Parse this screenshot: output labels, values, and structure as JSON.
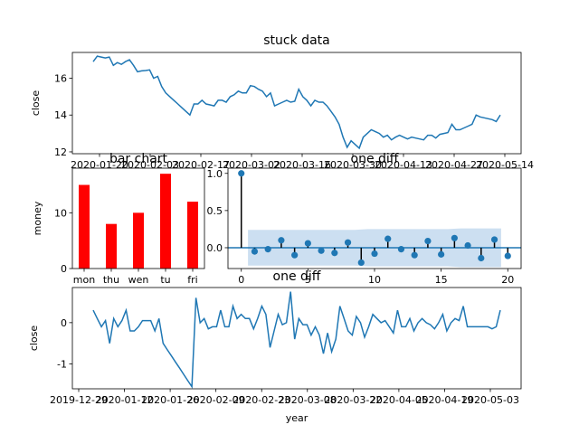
{
  "chart_data": [
    {
      "type": "line",
      "title": "stuck data",
      "xlabel": "",
      "ylabel": "close",
      "x_tick_labels": [
        "2020-01-20",
        "2020-02-03",
        "2020-02-17",
        "2020-03-02",
        "2020-03-16",
        "2020-03-30",
        "2020-04-13",
        "2020-04-27",
        "2020-05-14"
      ],
      "y_ticks": [
        12,
        14,
        16
      ],
      "ylim": [
        11.9,
        17.4
      ],
      "grid": false,
      "series": [
        {
          "values": [
            16.9,
            17.2,
            17.15,
            17.1,
            17.15,
            16.7,
            16.85,
            16.75,
            16.9,
            17.0,
            16.7,
            16.35,
            16.4,
            16.42,
            16.45,
            16.0,
            16.1,
            15.55,
            15.2,
            15.0,
            14.8,
            14.6,
            14.4,
            14.2,
            14.0,
            14.6,
            14.6,
            14.8,
            14.6,
            14.55,
            14.5,
            14.8,
            14.8,
            14.7,
            15.0,
            15.1,
            15.3,
            15.2,
            15.2,
            15.6,
            15.55,
            15.4,
            15.3,
            15.0,
            15.2,
            14.5,
            14.6,
            14.7,
            14.8,
            14.7,
            14.75,
            15.4,
            15.0,
            14.8,
            14.5,
            14.8,
            14.7,
            14.7,
            14.5,
            14.2,
            13.9,
            13.5,
            12.8,
            12.25,
            12.6,
            12.4,
            12.2,
            12.8,
            13.0,
            13.2,
            13.1,
            13.0,
            12.8,
            12.9,
            12.65,
            12.8,
            12.9,
            12.8,
            12.7,
            12.8,
            12.75,
            12.7,
            12.65,
            12.9,
            12.9,
            12.75,
            12.95,
            13.0,
            13.05,
            13.5,
            13.2,
            13.2,
            13.3,
            13.4,
            13.5,
            14.0,
            13.9,
            13.85,
            13.8,
            13.75,
            13.65,
            14.0
          ]
        }
      ]
    },
    {
      "type": "bar",
      "title": "bar chart",
      "xlabel": "",
      "ylabel": "money",
      "categories": [
        "mon",
        "thu",
        "wen",
        "tu",
        "fri"
      ],
      "values": [
        15,
        8,
        10,
        17,
        12
      ],
      "y_ticks": [
        0,
        10
      ],
      "ylim": [
        0,
        18
      ],
      "colors": {
        "bar": "#ff0000"
      }
    },
    {
      "type": "stem",
      "title": "one diff",
      "xlabel": "",
      "ylabel": "",
      "x": [
        0,
        1,
        2,
        3,
        4,
        5,
        6,
        7,
        8,
        9,
        10,
        11,
        12,
        13,
        14,
        15,
        16,
        17,
        18,
        19,
        20
      ],
      "values": [
        1.0,
        -0.05,
        -0.02,
        0.1,
        -0.1,
        0.06,
        -0.04,
        -0.07,
        0.07,
        -0.2,
        -0.08,
        0.12,
        -0.02,
        -0.1,
        0.09,
        -0.09,
        0.13,
        0.03,
        -0.14,
        0.11,
        -0.11
      ],
      "confidence_band": [
        0.24,
        0.24,
        0.24,
        0.24,
        0.24,
        0.24,
        0.24,
        0.24,
        0.24,
        0.25,
        0.25,
        0.25,
        0.25,
        0.25,
        0.25,
        0.25,
        0.26,
        0.26,
        0.26,
        0.26
      ],
      "x_ticks": [
        0,
        5,
        10,
        15,
        20
      ],
      "y_ticks": [
        0.0,
        0.5,
        1.0
      ],
      "xlim": [
        -1,
        21
      ],
      "ylim": [
        -0.28,
        1.07
      ],
      "colors": {
        "marker": "#1f77b4",
        "band": "#c6dbef",
        "baseline": "#1f77b4"
      }
    },
    {
      "type": "line",
      "title": "one diff",
      "xlabel": "year",
      "ylabel": "close",
      "x_tick_labels": [
        "2019-12-29",
        "2020-01-12",
        "2020-01-26",
        "2020-02-09",
        "2020-02-23",
        "2020-03-08",
        "2020-03-22",
        "2020-04-05",
        "2020-04-19",
        "2020-05-03"
      ],
      "y_ticks": [
        -1,
        0
      ],
      "ylim": [
        -1.6,
        0.85
      ],
      "grid": false,
      "series": [
        {
          "values": [
            0.3,
            0.1,
            -0.1,
            0.05,
            -0.5,
            0.1,
            -0.1,
            0.05,
            0.3,
            -0.2,
            -0.2,
            -0.1,
            0.05,
            0.05,
            0.05,
            -0.2,
            0.1,
            -0.5,
            -0.65,
            -0.8,
            -0.95,
            -1.1,
            -1.25,
            -1.4,
            -1.55,
            0.6,
            0.0,
            0.1,
            -0.15,
            -0.1,
            -0.1,
            0.3,
            -0.1,
            -0.1,
            0.4,
            0.1,
            0.2,
            0.1,
            0.1,
            -0.15,
            0.1,
            0.4,
            0.2,
            -0.6,
            -0.2,
            0.2,
            -0.05,
            0.0,
            0.75,
            -0.4,
            0.1,
            -0.05,
            -0.05,
            -0.3,
            -0.1,
            -0.3,
            -0.75,
            -0.25,
            -0.7,
            -0.4,
            0.4,
            0.1,
            -0.2,
            -0.3,
            0.15,
            0.0,
            -0.35,
            -0.1,
            0.2,
            0.1,
            0.0,
            0.05,
            -0.1,
            -0.25,
            0.3,
            -0.1,
            -0.1,
            0.1,
            -0.2,
            0.0,
            0.1,
            0.0,
            -0.05,
            -0.15,
            0.0,
            0.2,
            -0.2,
            0.0,
            0.1,
            0.05,
            0.4,
            -0.1,
            -0.1,
            -0.1,
            -0.1,
            -0.1,
            -0.1,
            -0.15,
            -0.1,
            0.3
          ]
        }
      ]
    }
  ]
}
